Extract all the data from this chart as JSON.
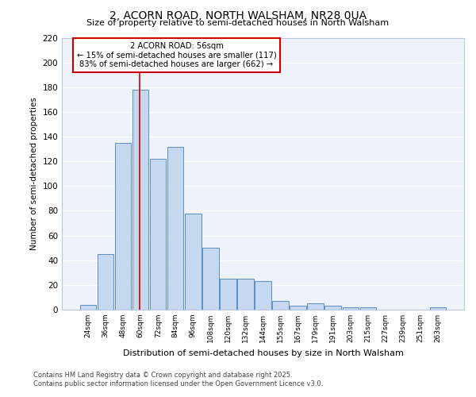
{
  "title": "2, ACORN ROAD, NORTH WALSHAM, NR28 0UA",
  "subtitle": "Size of property relative to semi-detached houses in North Walsham",
  "xlabel": "Distribution of semi-detached houses by size in North Walsham",
  "ylabel": "Number of semi-detached properties",
  "categories": [
    "24sqm",
    "36sqm",
    "48sqm",
    "60sqm",
    "72sqm",
    "84sqm",
    "96sqm",
    "108sqm",
    "120sqm",
    "132sqm",
    "144sqm",
    "155sqm",
    "167sqm",
    "179sqm",
    "191sqm",
    "203sqm",
    "215sqm",
    "227sqm",
    "239sqm",
    "251sqm",
    "263sqm"
  ],
  "values": [
    4,
    45,
    135,
    178,
    122,
    132,
    78,
    50,
    25,
    25,
    23,
    7,
    3,
    5,
    3,
    2,
    2,
    0,
    0,
    0,
    2
  ],
  "bar_color": "#c5d8f0",
  "bar_edge_color": "#5b8ec4",
  "vline_x": 2.92,
  "vline_color": "#cc0000",
  "annotation_title": "2 ACORN ROAD: 56sqm",
  "annotation_line1": "← 15% of semi-detached houses are smaller (117)",
  "annotation_line2": "83% of semi-detached houses are larger (662) →",
  "annotation_box_color": "#cc0000",
  "ylim": [
    0,
    220
  ],
  "yticks": [
    0,
    20,
    40,
    60,
    80,
    100,
    120,
    140,
    160,
    180,
    200,
    220
  ],
  "bg_color": "#eef2fb",
  "grid_color": "#ffffff",
  "footer_line1": "Contains HM Land Registry data © Crown copyright and database right 2025.",
  "footer_line2": "Contains public sector information licensed under the Open Government Licence v3.0."
}
